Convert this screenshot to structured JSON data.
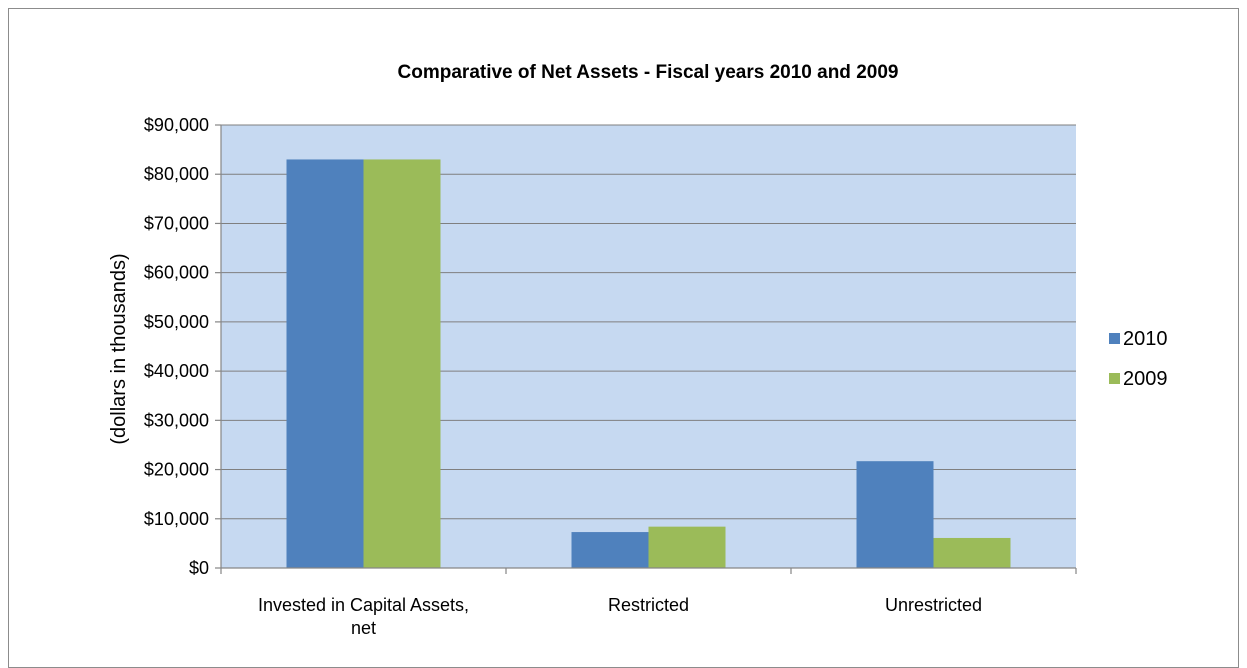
{
  "chart_data": {
    "type": "bar",
    "title": "Comparative of Net Assets - Fiscal years 2010 and 2009",
    "xlabel": "",
    "ylabel": "(dollars in thousands)",
    "categories": [
      [
        "Invested in Capital Assets,",
        "net"
      ],
      [
        "Restricted"
      ],
      [
        "Unrestricted"
      ]
    ],
    "series": [
      {
        "name": "2010",
        "values": [
          83000,
          7300,
          21700
        ]
      },
      {
        "name": "2009",
        "values": [
          83000,
          8400,
          6100
        ]
      }
    ],
    "ylim": [
      0,
      90000
    ],
    "yticks": [
      0,
      10000,
      20000,
      30000,
      40000,
      50000,
      60000,
      70000,
      80000,
      90000
    ],
    "ytick_labels": [
      "$0",
      "$10,000",
      "$20,000",
      "$30,000",
      "$40,000",
      "$50,000",
      "$60,000",
      "$70,000",
      "$80,000",
      "$90,000"
    ],
    "grid": true,
    "legend": "right",
    "colors": {
      "2010": "#4f81bd",
      "2009": "#9bbb59",
      "plot_background": "#c6d9f1",
      "gridline": "#7f7f7f"
    }
  }
}
